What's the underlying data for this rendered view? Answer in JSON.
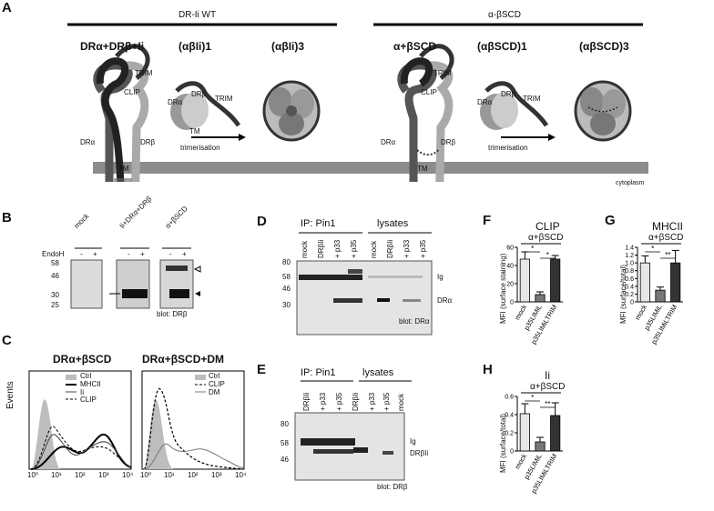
{
  "panel_A": {
    "label": "A",
    "group_left": "DR-Ii WT",
    "group_right": "α-βSCD",
    "col_titles": [
      "DRα+DRβ+Ii",
      "(αβIi)1",
      "(αβIi)3",
      "α+βSCD",
      "(αβSCD)1",
      "(αβSCD)3"
    ],
    "labels": {
      "trim": "TRIM",
      "clip": "CLIP",
      "dra": "DRα",
      "drb": "DRβ",
      "tm": "TM"
    },
    "trimerisation": "trimerisation",
    "cytoplasm": "cytoplasm"
  },
  "panel_B": {
    "label": "B",
    "lanes": [
      "mock",
      "Ii+DRα+DRβ",
      "α+βSCD"
    ],
    "endoh": "EndoH",
    "signs": [
      "-",
      "+",
      "-",
      "+",
      "-",
      "+"
    ],
    "mw": [
      "58",
      "46",
      "30",
      "25"
    ],
    "blot": "blot: DRβ"
  },
  "panel_C": {
    "label": "C",
    "plot1": {
      "title": "DRα+βSCD",
      "legend": [
        "Ctrl",
        "MHCII",
        "Ii",
        "CLIP"
      ]
    },
    "plot2": {
      "title": "DRα+βSCD+DM",
      "legend": [
        "Ctrl",
        "CLIP",
        "DM"
      ]
    },
    "ylabel": "Events",
    "xticks": [
      "10⁰",
      "10¹",
      "10²",
      "10³",
      "10⁴"
    ]
  },
  "panel_D": {
    "label": "D",
    "ip": "IP: Pin1",
    "lysates": "lysates",
    "lanes": [
      "mock",
      "DRβIi",
      "+ p33",
      "+ p35",
      "mock",
      "DRβIi",
      "+ p33",
      "+ p35"
    ],
    "mw": [
      "80",
      "58",
      "46",
      "30"
    ],
    "bands": [
      "Ig",
      "DRα"
    ],
    "blot": "blot: DRα"
  },
  "panel_E": {
    "label": "E",
    "ip": "IP: Pin1",
    "lysates": "lysates",
    "lanes": [
      "DRβIi",
      "+ p33",
      "+ p35",
      "DRβIi",
      "+ p33",
      "+ p35",
      "mock"
    ],
    "mw": [
      "80",
      "58",
      "46"
    ],
    "bands": [
      "Ig",
      "DRβIi"
    ],
    "blot": "blot: DRβ"
  },
  "bar_F": {
    "label": "F",
    "title": "CLIP",
    "subtitle": "α+βSCD",
    "ylabel": "MFI (surface staining)"
  },
  "bar_G": {
    "label": "G",
    "title": "MHCII",
    "subtitle": "α+βSCD",
    "ylabel": "MFI (surface/total)"
  },
  "bar_H": {
    "label": "H",
    "title": "Ii",
    "subtitle": "α+βSCD",
    "ylabel": "MFI (surface/total)"
  },
  "chart_data": [
    {
      "type": "bar",
      "title": "CLIP",
      "subtitle": "α+βSCD",
      "ylabel": "MFI (surface staining)",
      "categories": [
        "mock",
        "p35LIMiL",
        "p35LIMiLTRIM"
      ],
      "values": [
        47,
        8,
        47
      ],
      "errors": [
        8,
        3,
        4
      ],
      "ylim": [
        0,
        60
      ],
      "yticks": [
        "0",
        "20",
        "40",
        "60"
      ],
      "significance": [
        "*",
        "*"
      ],
      "colors": [
        "#e6e6e6",
        "#777777",
        "#333333"
      ]
    },
    {
      "type": "bar",
      "title": "MHCII",
      "subtitle": "α+βSCD",
      "ylabel": "MFI (surface/total)",
      "categories": [
        "mock",
        "p35LIMiL",
        "p35LIMiLTRIM"
      ],
      "values": [
        1.0,
        0.3,
        1.0
      ],
      "errors": [
        0.18,
        0.08,
        0.32
      ],
      "ylim": [
        0,
        1.4
      ],
      "yticks": [
        "0",
        "0.2",
        "0.4",
        "0.6",
        "0.8",
        "1.0",
        "1.2",
        "1.4"
      ],
      "significance": [
        "*",
        "**"
      ],
      "colors": [
        "#e6e6e6",
        "#777777",
        "#333333"
      ]
    },
    {
      "type": "bar",
      "title": "Ii",
      "subtitle": "α+βSCD",
      "ylabel": "MFI (surface/total)",
      "categories": [
        "mock",
        "p35LIMiL",
        "p35LIMiLTRIM"
      ],
      "values": [
        0.41,
        0.1,
        0.39
      ],
      "errors": [
        0.11,
        0.05,
        0.14
      ],
      "ylim": [
        0,
        0.6
      ],
      "yticks": [
        "0",
        "0.2",
        "0.4",
        "0.6"
      ],
      "significance": [
        "*",
        "**"
      ],
      "colors": [
        "#e6e6e6",
        "#777777",
        "#333333"
      ]
    }
  ]
}
